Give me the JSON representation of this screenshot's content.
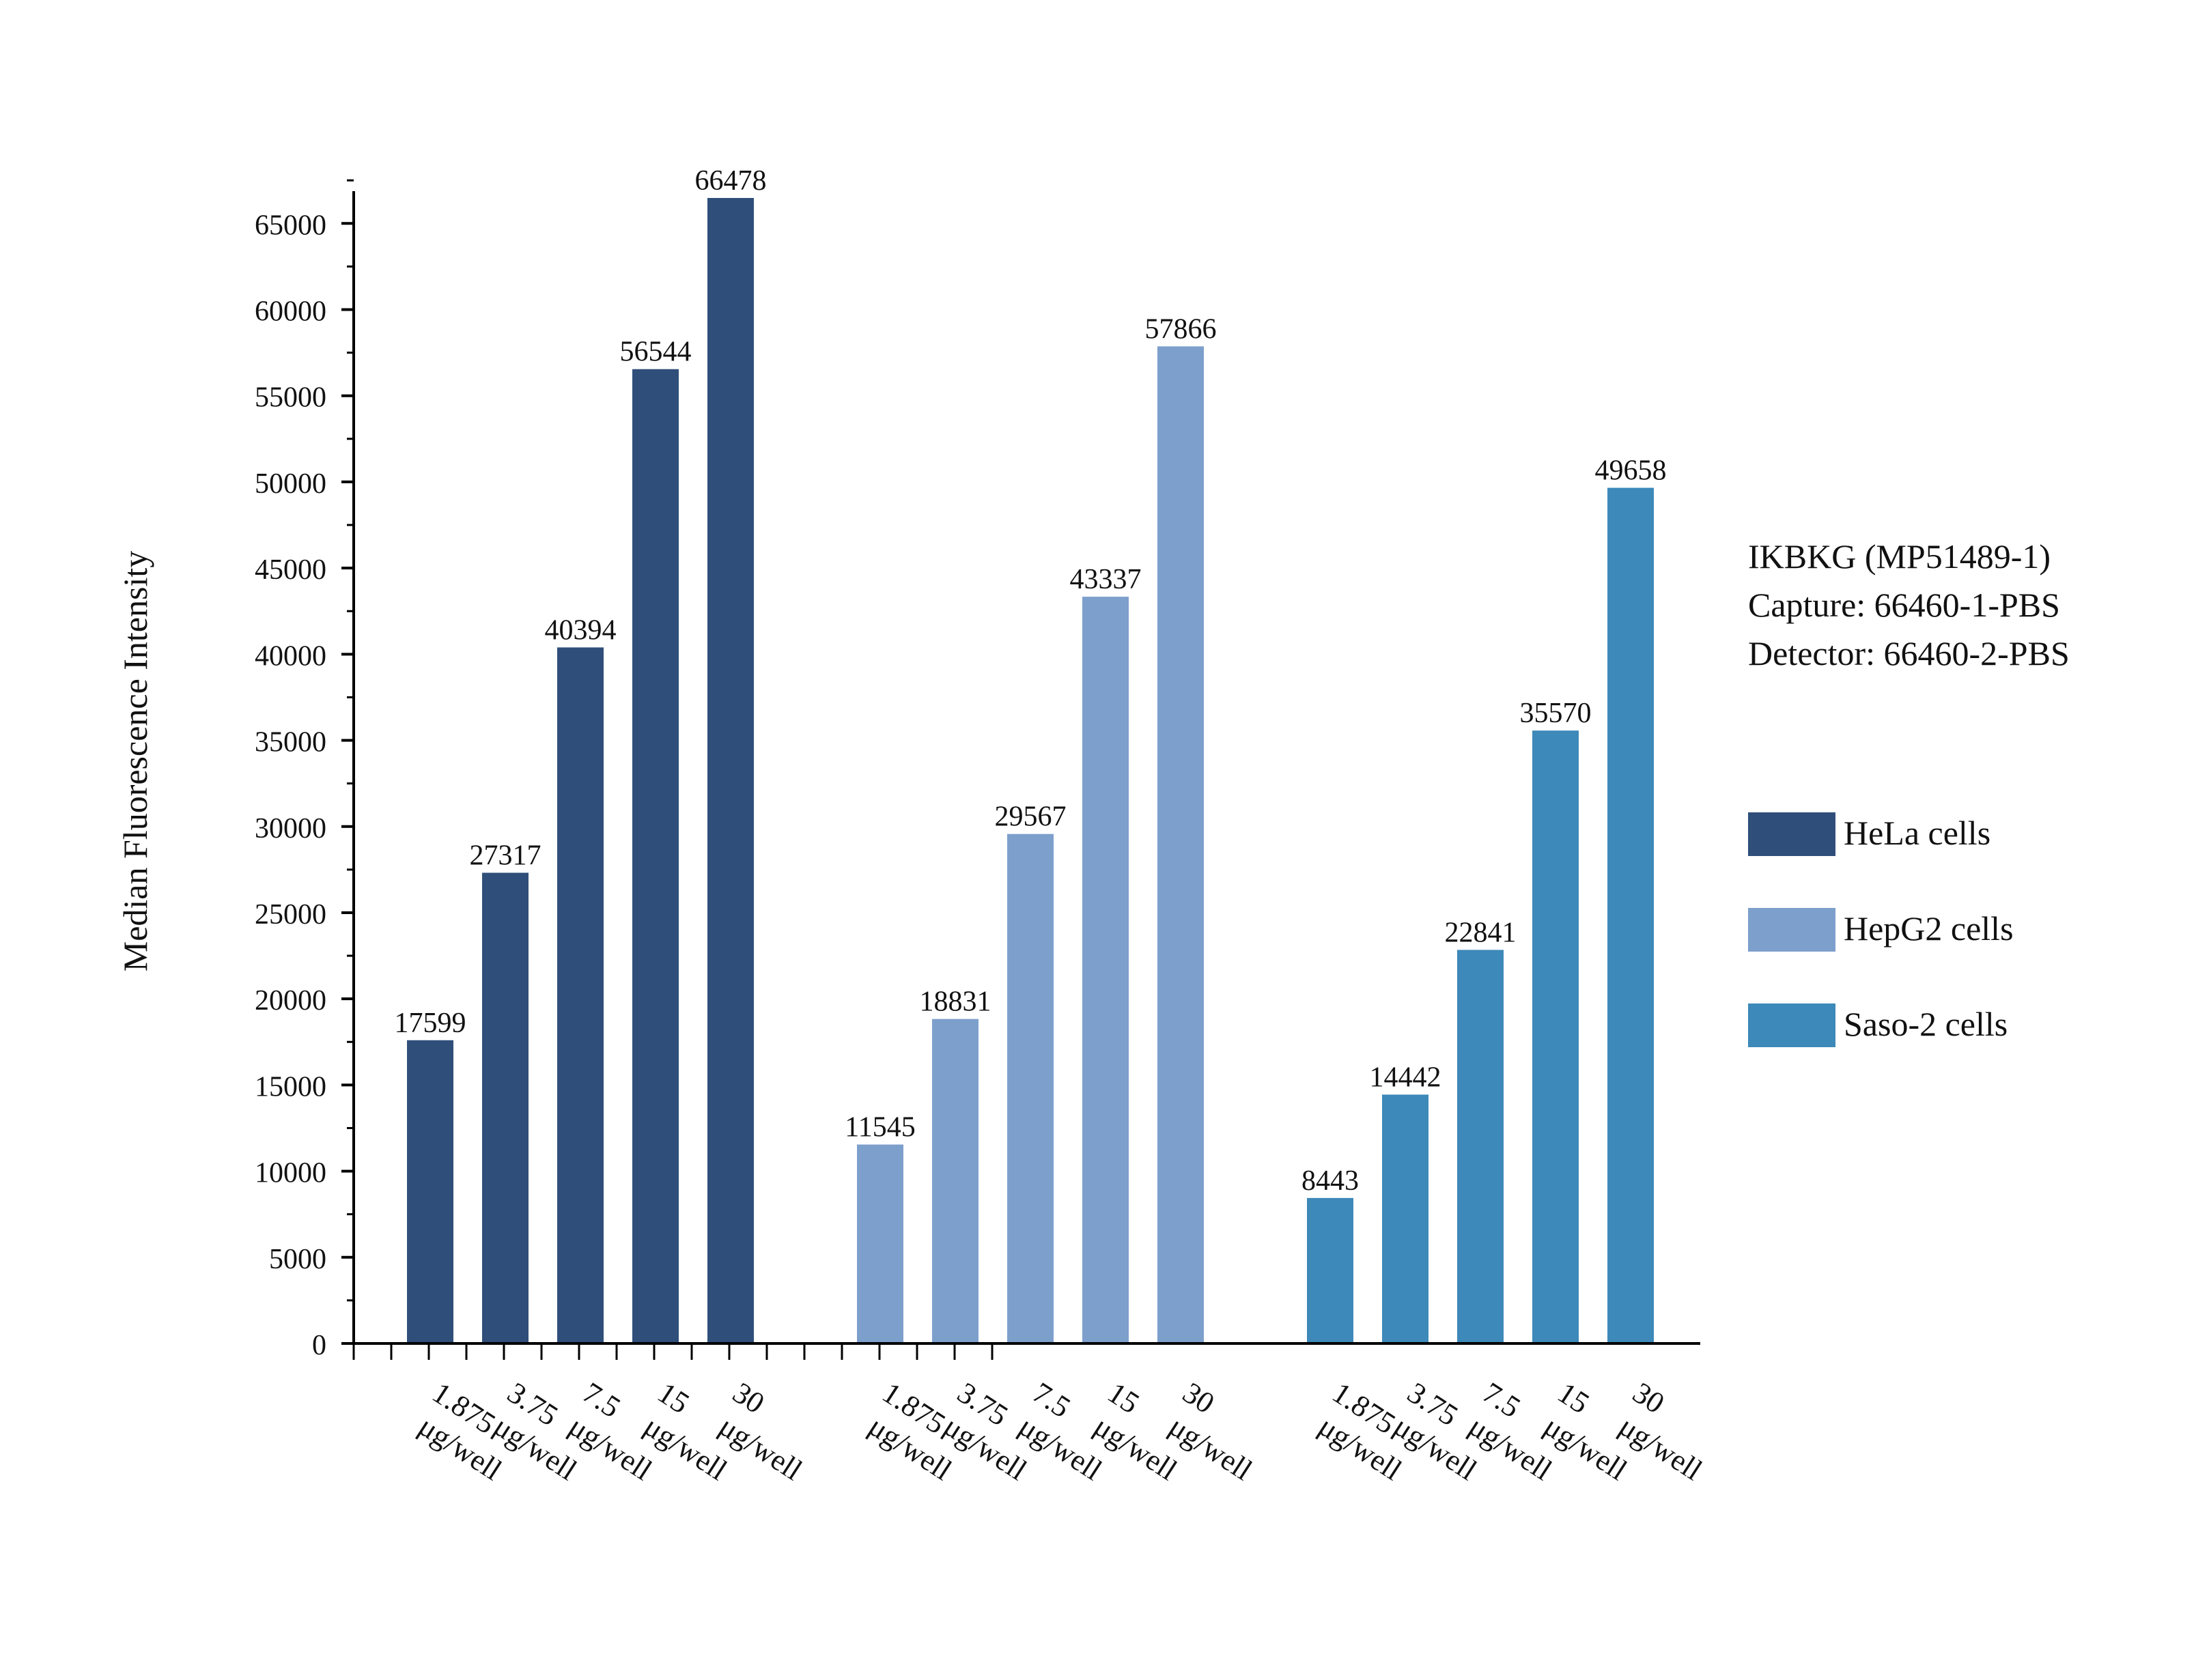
{
  "chart_data": {
    "type": "bar",
    "title": "",
    "xlabel": "",
    "ylabel": "Median Fluorescence Intensity",
    "ylim": [
      0,
      67000
    ],
    "y_ticks": [
      0,
      5000,
      10000,
      15000,
      20000,
      25000,
      30000,
      35000,
      40000,
      45000,
      50000,
      55000,
      60000,
      65000
    ],
    "grid": false,
    "legend_position": "right",
    "categories": [
      "1.875 μg/well",
      "3.75 μg/well",
      "7.5 μg/well",
      "15 μg/well",
      "30 μg/well"
    ],
    "series": [
      {
        "name": "HeLa cells",
        "color": "#2f4f7a",
        "values": [
          17599,
          27317,
          40394,
          56544,
          66478
        ]
      },
      {
        "name": "HepG2 cells",
        "color": "#7d9fcc",
        "values": [
          11545,
          18831,
          29567,
          43337,
          57866
        ]
      },
      {
        "name": "Saso-2 cells",
        "color": "#3d89b9",
        "values": [
          8443,
          14442,
          22841,
          35570,
          49658
        ]
      }
    ]
  },
  "annotation": {
    "line1": "IKBKG (MP51489-1)",
    "line2": "Capture: 66460-1-PBS",
    "line3": "Detector: 66460-2-PBS"
  }
}
